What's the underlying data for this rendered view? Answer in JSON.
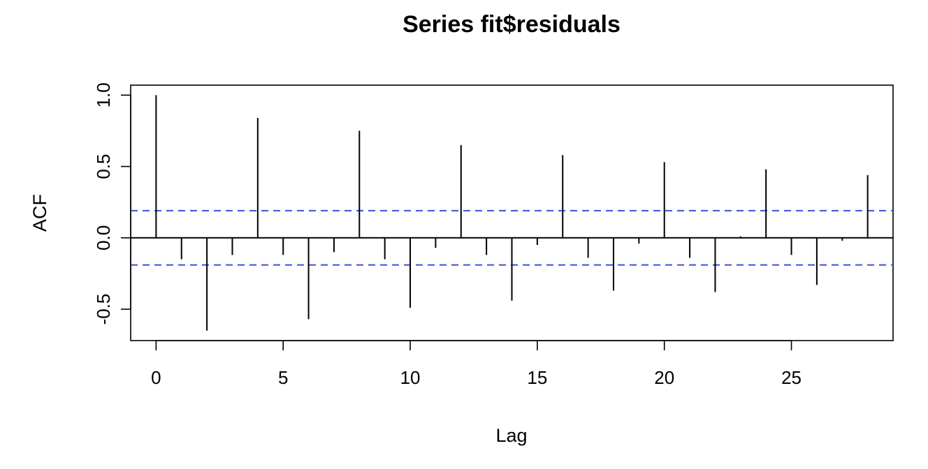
{
  "chart_data": {
    "type": "bar",
    "title": "Series  fit$residuals",
    "xlabel": "Lag",
    "ylabel": "ACF",
    "xlim": [
      -1,
      29
    ],
    "ylim": [
      -0.72,
      1.07
    ],
    "xticks": [
      0,
      5,
      10,
      15,
      20,
      25
    ],
    "yticks": [
      -0.5,
      0.0,
      0.5,
      1.0
    ],
    "xtick_labels": [
      "0",
      "5",
      "10",
      "15",
      "20",
      "25"
    ],
    "ytick_labels": [
      "-0.5",
      "0.0",
      "0.5",
      "1.0"
    ],
    "confidence_bound": 0.19,
    "grid": false,
    "colors": {
      "bars": "#000000",
      "confidence": "#3a4fd6",
      "axis": "#000000"
    },
    "lags": [
      0,
      1,
      2,
      3,
      4,
      5,
      6,
      7,
      8,
      9,
      10,
      11,
      12,
      13,
      14,
      15,
      16,
      17,
      18,
      19,
      20,
      21,
      22,
      23,
      24,
      25,
      26,
      27,
      28
    ],
    "values": [
      1.0,
      -0.15,
      -0.65,
      -0.12,
      0.84,
      -0.12,
      -0.57,
      -0.1,
      0.75,
      -0.15,
      -0.49,
      -0.07,
      0.65,
      -0.12,
      -0.44,
      -0.05,
      0.58,
      -0.14,
      -0.37,
      -0.04,
      0.53,
      -0.14,
      -0.38,
      0.01,
      0.48,
      -0.12,
      -0.33,
      -0.02,
      0.44
    ]
  }
}
